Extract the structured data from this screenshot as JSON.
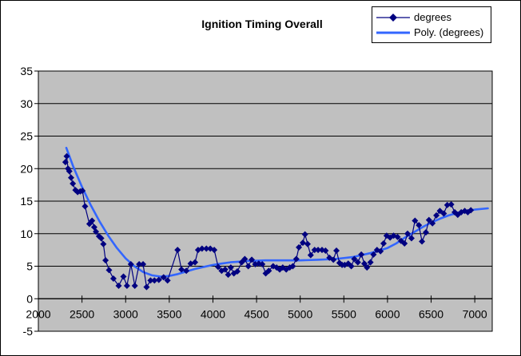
{
  "chart_data": {
    "type": "scatter",
    "title": "Ignition Timing Overall",
    "xlabel": "",
    "ylabel": "",
    "xlim": [
      2000,
      7200
    ],
    "ylim": [
      -5,
      35
    ],
    "x_ticks": [
      2000,
      2500,
      3000,
      3500,
      4000,
      4500,
      5000,
      5500,
      6000,
      6500,
      7000
    ],
    "y_ticks": [
      -5,
      0,
      5,
      10,
      15,
      20,
      25,
      30,
      35
    ],
    "grid": "horizontal-major",
    "legend_position": "top-right",
    "plot_bg_color": "#C0C0C0",
    "gridline_color": "#000000",
    "text_color": "#000000",
    "series": [
      {
        "name": "degrees",
        "type": "line-with-diamond-markers",
        "color": "#000080",
        "points": [
          [
            2310,
            21.0
          ],
          [
            2325,
            21.9
          ],
          [
            2340,
            20.0
          ],
          [
            2355,
            19.6
          ],
          [
            2375,
            18.6
          ],
          [
            2395,
            17.7
          ],
          [
            2425,
            16.7
          ],
          [
            2450,
            16.4
          ],
          [
            2480,
            16.5
          ],
          [
            2505,
            16.6
          ],
          [
            2535,
            14.2
          ],
          [
            2585,
            11.5
          ],
          [
            2615,
            12.0
          ],
          [
            2640,
            11.0
          ],
          [
            2660,
            10.3
          ],
          [
            2695,
            9.6
          ],
          [
            2720,
            9.3
          ],
          [
            2745,
            8.4
          ],
          [
            2770,
            5.9
          ],
          [
            2810,
            4.4
          ],
          [
            2860,
            3.1
          ],
          [
            2920,
            2.0
          ],
          [
            2975,
            3.4
          ],
          [
            3015,
            2.0
          ],
          [
            3060,
            5.3
          ],
          [
            3105,
            2.0
          ],
          [
            3155,
            5.3
          ],
          [
            3200,
            5.3
          ],
          [
            3240,
            1.8
          ],
          [
            3285,
            2.8
          ],
          [
            3330,
            2.8
          ],
          [
            3380,
            2.9
          ],
          [
            3435,
            3.3
          ],
          [
            3480,
            2.8
          ],
          [
            3595,
            7.5
          ],
          [
            3640,
            4.5
          ],
          [
            3695,
            4.3
          ],
          [
            3745,
            5.4
          ],
          [
            3795,
            5.6
          ],
          [
            3830,
            7.5
          ],
          [
            3875,
            7.7
          ],
          [
            3925,
            7.7
          ],
          [
            3970,
            7.7
          ],
          [
            4015,
            7.5
          ],
          [
            4060,
            4.9
          ],
          [
            4100,
            4.3
          ],
          [
            4140,
            4.5
          ],
          [
            4175,
            3.7
          ],
          [
            4205,
            4.8
          ],
          [
            4240,
            3.9
          ],
          [
            4280,
            4.2
          ],
          [
            4330,
            5.6
          ],
          [
            4365,
            6.1
          ],
          [
            4405,
            5.0
          ],
          [
            4445,
            6.0
          ],
          [
            4485,
            5.3
          ],
          [
            4525,
            5.4
          ],
          [
            4565,
            5.3
          ],
          [
            4605,
            3.9
          ],
          [
            4640,
            4.3
          ],
          [
            4690,
            5.0
          ],
          [
            4730,
            4.8
          ],
          [
            4765,
            4.5
          ],
          [
            4800,
            4.8
          ],
          [
            4840,
            4.5
          ],
          [
            4880,
            4.8
          ],
          [
            4915,
            5.0
          ],
          [
            4955,
            6.1
          ],
          [
            4985,
            7.9
          ],
          [
            5030,
            8.6
          ],
          [
            5055,
            9.9
          ],
          [
            5085,
            8.4
          ],
          [
            5120,
            6.7
          ],
          [
            5165,
            7.5
          ],
          [
            5205,
            7.5
          ],
          [
            5250,
            7.5
          ],
          [
            5290,
            7.4
          ],
          [
            5335,
            6.3
          ],
          [
            5380,
            6.0
          ],
          [
            5415,
            7.4
          ],
          [
            5450,
            5.5
          ],
          [
            5480,
            5.2
          ],
          [
            5510,
            5.2
          ],
          [
            5550,
            5.4
          ],
          [
            5585,
            5.0
          ],
          [
            5620,
            6.1
          ],
          [
            5660,
            5.6
          ],
          [
            5700,
            6.8
          ],
          [
            5735,
            5.4
          ],
          [
            5765,
            4.8
          ],
          [
            5805,
            5.6
          ],
          [
            5840,
            6.8
          ],
          [
            5880,
            7.5
          ],
          [
            5920,
            7.3
          ],
          [
            5955,
            8.5
          ],
          [
            5990,
            9.7
          ],
          [
            6030,
            9.4
          ],
          [
            6070,
            9.7
          ],
          [
            6115,
            9.5
          ],
          [
            6155,
            8.9
          ],
          [
            6195,
            8.5
          ],
          [
            6230,
            10.0
          ],
          [
            6275,
            9.3
          ],
          [
            6315,
            12.0
          ],
          [
            6360,
            11.3
          ],
          [
            6395,
            8.8
          ],
          [
            6440,
            10.2
          ],
          [
            6475,
            12.1
          ],
          [
            6515,
            11.6
          ],
          [
            6560,
            12.8
          ],
          [
            6600,
            13.5
          ],
          [
            6645,
            13.1
          ],
          [
            6685,
            14.4
          ],
          [
            6730,
            14.5
          ],
          [
            6770,
            13.3
          ],
          [
            6805,
            12.9
          ],
          [
            6845,
            13.3
          ],
          [
            6885,
            13.5
          ],
          [
            6920,
            13.3
          ],
          [
            6955,
            13.6
          ]
        ]
      },
      {
        "name": "Poly. (degrees)",
        "type": "smooth-trendline",
        "color": "#3366FF",
        "points": [
          [
            2320,
            23.2
          ],
          [
            2400,
            20.3
          ],
          [
            2500,
            17.2
          ],
          [
            2600,
            14.4
          ],
          [
            2700,
            11.9
          ],
          [
            2800,
            9.7
          ],
          [
            2900,
            7.8
          ],
          [
            3000,
            6.2
          ],
          [
            3100,
            5.0
          ],
          [
            3200,
            4.1
          ],
          [
            3300,
            3.6
          ],
          [
            3400,
            3.4
          ],
          [
            3500,
            3.5
          ],
          [
            3600,
            3.8
          ],
          [
            3700,
            4.2
          ],
          [
            3800,
            4.6
          ],
          [
            3900,
            4.9
          ],
          [
            4000,
            5.2
          ],
          [
            4100,
            5.4
          ],
          [
            4200,
            5.6
          ],
          [
            4300,
            5.7
          ],
          [
            4400,
            5.8
          ],
          [
            4600,
            5.9
          ],
          [
            4800,
            5.9
          ],
          [
            5000,
            5.9
          ],
          [
            5200,
            6.0
          ],
          [
            5400,
            6.1
          ],
          [
            5600,
            6.4
          ],
          [
            5800,
            7.0
          ],
          [
            6000,
            7.8
          ],
          [
            6100,
            8.5
          ],
          [
            6200,
            9.4
          ],
          [
            6300,
            10.2
          ],
          [
            6400,
            11.0
          ],
          [
            6500,
            11.7
          ],
          [
            6600,
            12.3
          ],
          [
            6700,
            12.8
          ],
          [
            6800,
            13.2
          ],
          [
            6900,
            13.5
          ],
          [
            7000,
            13.7
          ],
          [
            7150,
            13.9
          ]
        ]
      }
    ]
  }
}
